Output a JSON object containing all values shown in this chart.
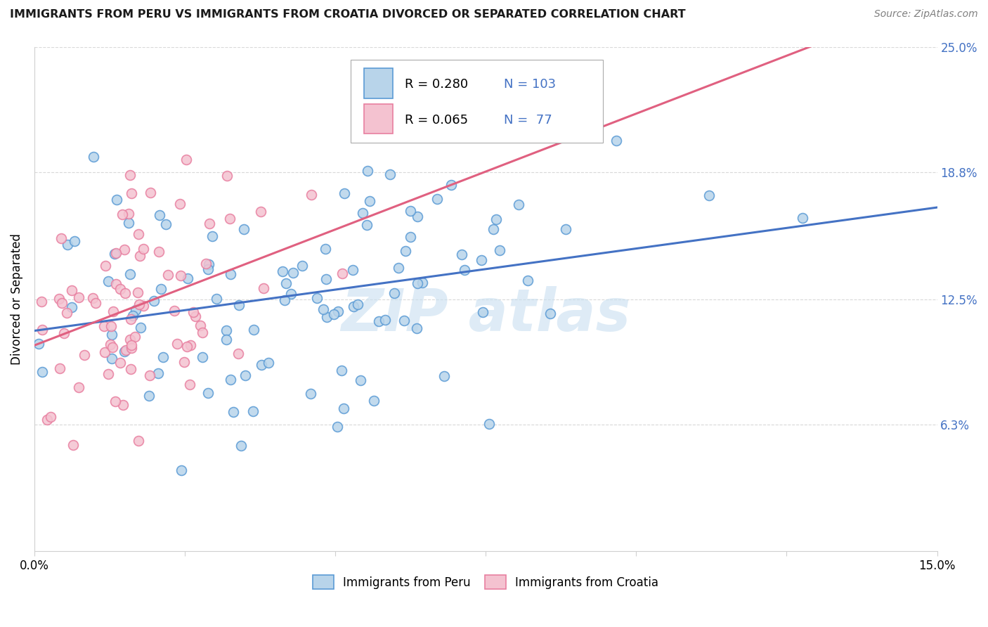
{
  "title": "IMMIGRANTS FROM PERU VS IMMIGRANTS FROM CROATIA DIVORCED OR SEPARATED CORRELATION CHART",
  "source": "Source: ZipAtlas.com",
  "ylabel_text": "Divorced or Separated",
  "xlim": [
    0.0,
    0.15
  ],
  "ylim": [
    0.0,
    0.25
  ],
  "y_ticks_right": [
    0.063,
    0.125,
    0.188,
    0.25
  ],
  "y_tick_labels_right": [
    "6.3%",
    "12.5%",
    "18.8%",
    "25.0%"
  ],
  "legend_blue_label": "Immigrants from Peru",
  "legend_pink_label": "Immigrants from Croatia",
  "legend_R_blue": "R = 0.280",
  "legend_N_blue": "N = 103",
  "legend_R_pink": "R = 0.065",
  "legend_N_pink": "N =  77",
  "blue_fill": "#b8d4ea",
  "blue_edge": "#5b9bd5",
  "pink_fill": "#f4c2d0",
  "pink_edge": "#e87fa0",
  "blue_line_color": "#4472c4",
  "pink_line_color": "#e06080",
  "blue_R": 0.28,
  "pink_R": 0.065,
  "blue_N": 103,
  "pink_N": 77,
  "watermark_color": "#c8dff0",
  "background_color": "#ffffff",
  "grid_color": "#d0d0d0",
  "title_color": "#1a1a1a",
  "source_color": "#808080",
  "right_tick_color": "#4472c4",
  "legend_text_color": "#4472c4",
  "legend_R_color": "#333333",
  "marker_size": 100
}
